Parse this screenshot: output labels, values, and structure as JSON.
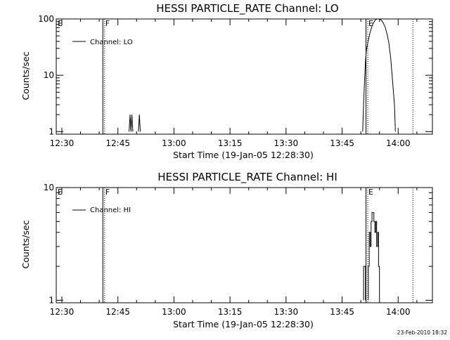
{
  "footer": {
    "date": "23-Feb-2010 18:32"
  },
  "chart_data": [
    {
      "type": "line",
      "title": "HESSI PARTICLE_RATE Channel: LO",
      "xlabel": "Start Time (19-Jan-05 12:28:30)",
      "ylabel": "Counts/sec",
      "yscale": "log",
      "ylim": [
        0.9,
        100
      ],
      "xlim": [
        "12:28:30",
        "14:09:10"
      ],
      "xticks": [
        "12:30",
        "12:45",
        "13:00",
        "13:15",
        "13:30",
        "13:45",
        "14:00"
      ],
      "yticks": [
        "1",
        "10",
        "100"
      ],
      "legend": {
        "position": "top-left",
        "entries": [
          "Channel: LO"
        ]
      },
      "markers": [
        {
          "label": "E",
          "time": "12:28:30",
          "style": "none"
        },
        {
          "label": "F",
          "time": "12:41:15",
          "style": "solid+dotted"
        },
        {
          "label": "E",
          "time": "13:51:40",
          "style": "solid+dotted"
        },
        {
          "label": "",
          "time": "14:03:45",
          "style": "dotted"
        }
      ],
      "series": [
        {
          "name": "Channel: LO",
          "segments": [
            [
              [
                "12:48:00",
                1
              ],
              [
                "12:48:15",
                2
              ],
              [
                "12:48:30",
                1
              ],
              [
                "12:48:45",
                2
              ],
              [
                "12:49:00",
                1
              ]
            ],
            [
              [
                "12:50:30",
                1
              ],
              [
                "12:50:45",
                2
              ],
              [
                "12:51:00",
                1
              ]
            ],
            [
              [
                "13:50:30",
                1
              ],
              [
                "13:50:45",
                3
              ],
              [
                "13:51:00",
                8
              ],
              [
                "13:51:15",
                18
              ],
              [
                "13:51:30",
                28
              ],
              [
                "13:52:00",
                42
              ],
              [
                "13:52:30",
                58
              ],
              [
                "13:53:00",
                75
              ],
              [
                "13:53:30",
                88
              ],
              [
                "13:54:00",
                98
              ],
              [
                "13:54:30",
                100
              ],
              [
                "13:55:00",
                100
              ],
              [
                "13:55:30",
                95
              ],
              [
                "13:56:00",
                85
              ],
              [
                "13:56:30",
                72
              ],
              [
                "13:57:00",
                55
              ],
              [
                "13:57:30",
                38
              ],
              [
                "13:58:00",
                20
              ],
              [
                "13:58:30",
                8
              ],
              [
                "13:59:00",
                3
              ],
              [
                "13:59:15",
                1
              ]
            ]
          ]
        }
      ]
    },
    {
      "type": "line",
      "title": "HESSI PARTICLE_RATE Channel: HI",
      "xlabel": "Start Time (19-Jan-05 12:28:30)",
      "ylabel": "Counts/sec",
      "yscale": "log",
      "ylim": [
        0.95,
        10
      ],
      "xlim": [
        "12:28:30",
        "14:09:10"
      ],
      "xticks": [
        "12:30",
        "12:45",
        "13:00",
        "13:15",
        "13:30",
        "13:45",
        "14:00"
      ],
      "yticks": [
        "1",
        "10"
      ],
      "legend": {
        "position": "top-left",
        "entries": [
          "Channel: HI"
        ]
      },
      "markers": [
        {
          "label": "E",
          "time": "12:28:30",
          "style": "none"
        },
        {
          "label": "F",
          "time": "12:41:15",
          "style": "solid+dotted"
        },
        {
          "label": "E",
          "time": "13:51:40",
          "style": "solid+dotted"
        },
        {
          "label": "",
          "time": "14:03:45",
          "style": "dotted"
        }
      ],
      "series": [
        {
          "name": "Channel: HI",
          "segments": [
            [
              [
                "13:50:45",
                1
              ],
              [
                "13:50:45",
                2
              ],
              [
                "13:51:15",
                2
              ],
              [
                "13:51:15",
                1
              ]
            ],
            [
              [
                "13:52:00",
                1
              ],
              [
                "13:52:00",
                2
              ],
              [
                "13:52:15",
                2
              ],
              [
                "13:52:15",
                4
              ],
              [
                "13:52:30",
                4
              ],
              [
                "13:52:30",
                3
              ],
              [
                "13:52:45",
                3
              ],
              [
                "13:52:45",
                5
              ],
              [
                "13:53:00",
                5
              ],
              [
                "13:53:00",
                6
              ],
              [
                "13:53:30",
                6
              ],
              [
                "13:53:30",
                5
              ],
              [
                "13:53:45",
                5
              ],
              [
                "13:53:45",
                4
              ],
              [
                "13:54:00",
                4
              ],
              [
                "13:54:00",
                5
              ],
              [
                "13:54:15",
                5
              ],
              [
                "13:54:15",
                3
              ],
              [
                "13:54:30",
                3
              ],
              [
                "13:54:30",
                4
              ],
              [
                "13:54:45",
                4
              ],
              [
                "13:54:45",
                2
              ],
              [
                "13:55:00",
                2
              ],
              [
                "13:55:00",
                1
              ]
            ]
          ]
        }
      ]
    }
  ]
}
